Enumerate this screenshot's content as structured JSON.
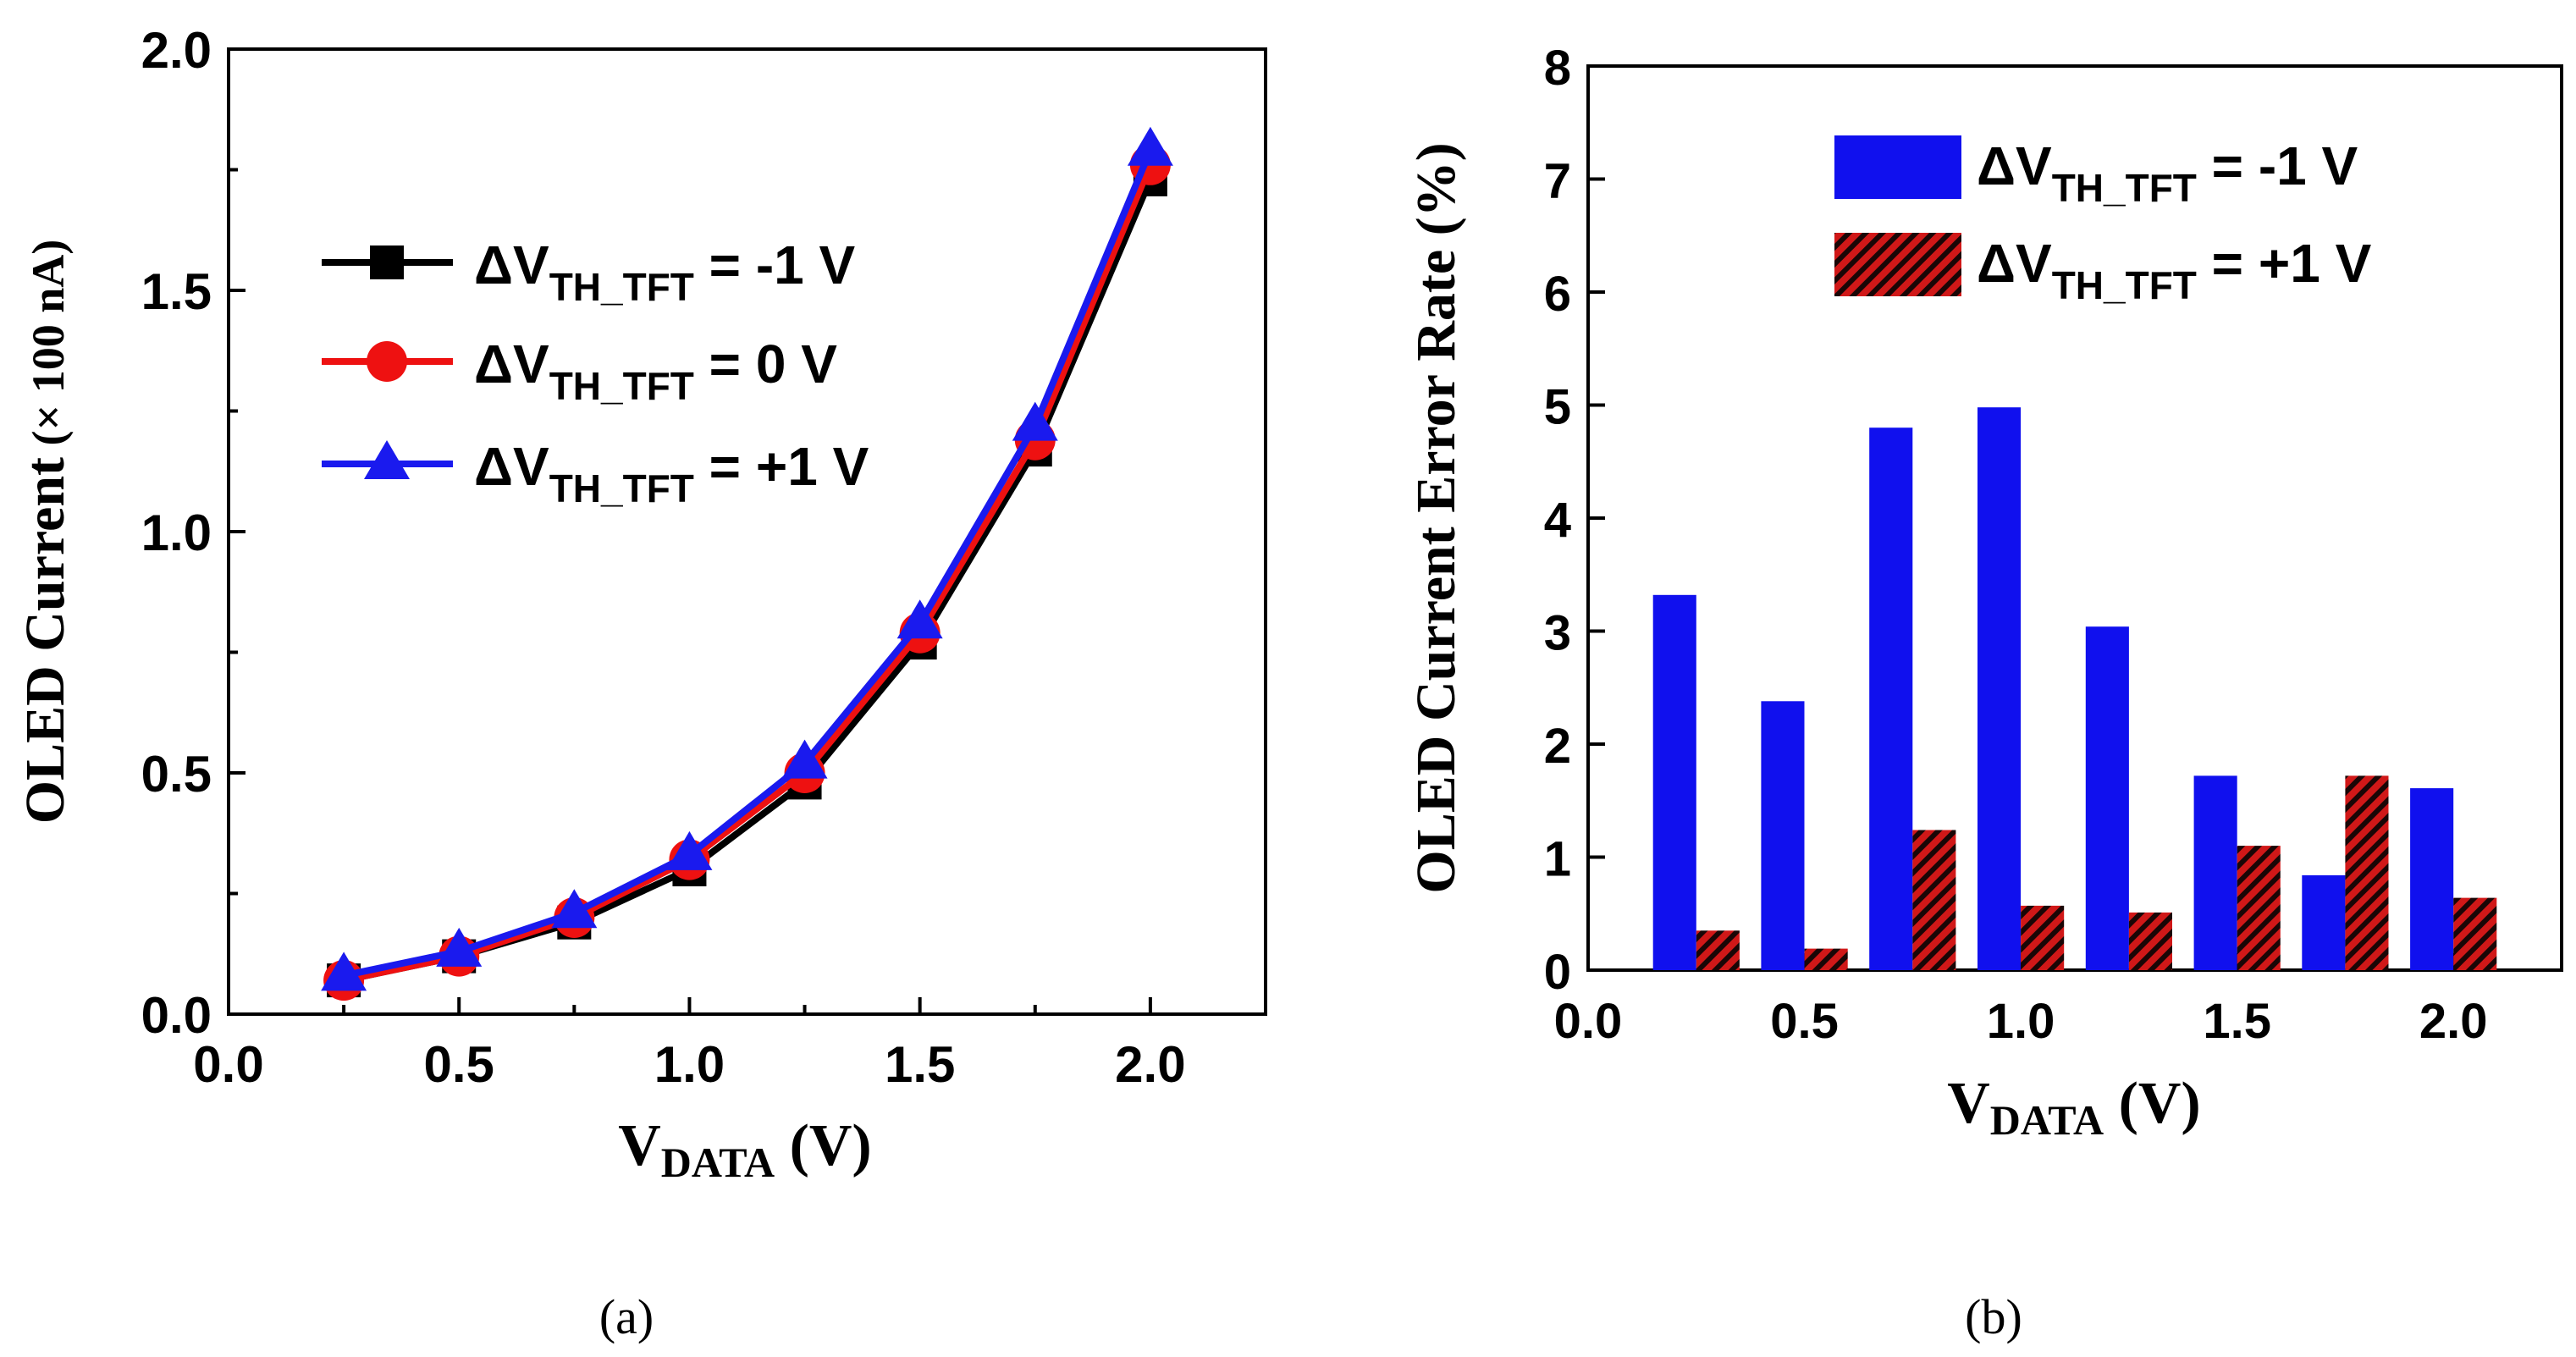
{
  "chart_data": [
    {
      "panel": "(a)",
      "type": "line",
      "xlabel": {
        "main": "V",
        "sub": "DATA",
        "unit": " (V)"
      },
      "ylabel": {
        "main": "OLED Current",
        "unit": " (× 100 nA)"
      },
      "xlim": [
        0.0,
        2.25
      ],
      "ylim": [
        0.0,
        2.0
      ],
      "xticks": [
        "0.0",
        "0.5",
        "1.0",
        "1.5",
        "2.0"
      ],
      "yticks": [
        "0.0",
        "0.5",
        "1.0",
        "1.5",
        "2.0"
      ],
      "x": [
        0.25,
        0.5,
        0.75,
        1.0,
        1.25,
        1.5,
        1.75,
        2.0
      ],
      "series": [
        {
          "name": "ΔV_TH_TFT = -1 V",
          "label_main": "ΔV",
          "label_sub": "TH_TFT",
          "label_tail": " = -1 V",
          "color": "#000000",
          "marker": "square",
          "values": [
            0.07,
            0.12,
            0.19,
            0.3,
            0.48,
            0.77,
            1.17,
            1.73
          ]
        },
        {
          "name": "ΔV_TH_TFT = 0 V",
          "label_main": "ΔV",
          "label_sub": "TH_TFT",
          "label_tail": " = 0 V",
          "color": "#ee1111",
          "marker": "circle",
          "values": [
            0.07,
            0.12,
            0.2,
            0.32,
            0.5,
            0.79,
            1.19,
            1.76
          ]
        },
        {
          "name": "ΔV_TH_TFT = +1 V",
          "label_main": "ΔV",
          "label_sub": "TH_TFT",
          "label_tail": " = +1 V",
          "color": "#1a1aee",
          "marker": "triangle",
          "values": [
            0.08,
            0.13,
            0.21,
            0.33,
            0.52,
            0.81,
            1.22,
            1.79
          ]
        }
      ],
      "legend": "upper-left"
    },
    {
      "panel": "(b)",
      "type": "bar",
      "xlabel": {
        "main": "V",
        "sub": "DATA",
        "unit": " (V)"
      },
      "ylabel": {
        "main": "OLED Current Error Rate (%)"
      },
      "xlim": [
        0.0,
        2.25
      ],
      "ylim": [
        0,
        8
      ],
      "xticks": [
        "0.0",
        "0.5",
        "1.0",
        "1.5",
        "2.0"
      ],
      "yticks": [
        "0",
        "1",
        "2",
        "3",
        "4",
        "5",
        "6",
        "7",
        "8"
      ],
      "categories": [
        0.25,
        0.5,
        0.75,
        1.0,
        1.25,
        1.5,
        1.75,
        2.0
      ],
      "series": [
        {
          "name": "ΔV_TH_TFT = -1 V",
          "label_main": "ΔV",
          "label_sub": "TH_TFT",
          "label_tail": " = -1 V",
          "color": "#1010ee",
          "pattern": "solid",
          "values": [
            3.32,
            2.38,
            4.8,
            4.98,
            3.04,
            1.72,
            0.84,
            1.61
          ]
        },
        {
          "name": "ΔV_TH_TFT = +1 V",
          "label_main": "ΔV",
          "label_sub": "TH_TFT",
          "label_tail": " = +1 V",
          "color": "#cc1111",
          "pattern": "hatched",
          "values": [
            0.35,
            0.19,
            1.24,
            0.57,
            0.51,
            1.1,
            1.72,
            0.64
          ]
        }
      ],
      "legend": "top"
    }
  ],
  "captions": {
    "a": "(a)",
    "b": "(b)"
  }
}
